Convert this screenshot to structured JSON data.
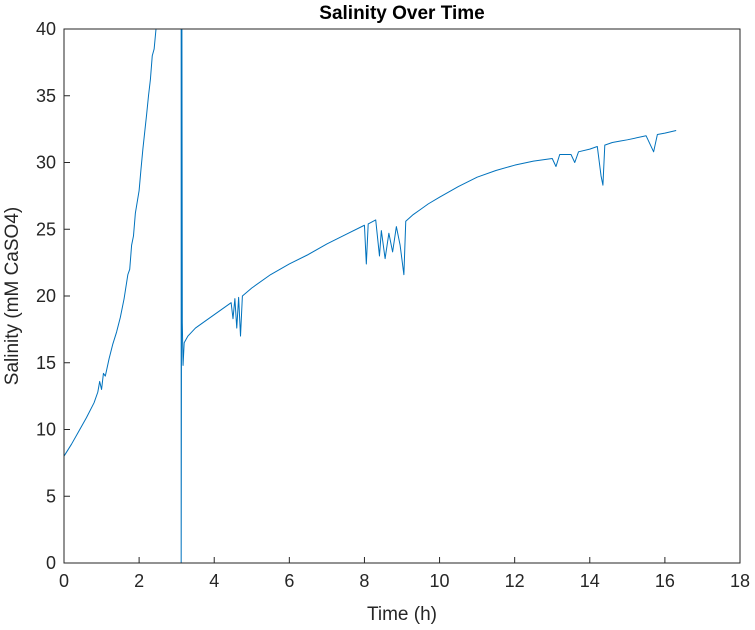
{
  "chart_data": {
    "type": "line",
    "title": "Salinity Over Time",
    "xlabel": "Time (h)",
    "ylabel": "Salinity (mM CaSO4)",
    "xlim": [
      0,
      18
    ],
    "ylim": [
      0,
      40
    ],
    "xticks": [
      0,
      2,
      4,
      6,
      8,
      10,
      12,
      14,
      16,
      18
    ],
    "yticks": [
      0,
      5,
      10,
      15,
      20,
      25,
      30,
      35,
      40
    ],
    "grid": false,
    "line_color": "#0072BD",
    "series": [
      {
        "name": "",
        "segments": [
          [
            [
              0,
              8.0
            ],
            [
              0.2,
              8.9
            ],
            [
              0.4,
              9.9
            ],
            [
              0.6,
              10.9
            ],
            [
              0.8,
              12.0
            ],
            [
              0.9,
              12.8
            ],
            [
              0.95,
              13.6
            ],
            [
              1.0,
              13.0
            ],
            [
              1.05,
              14.2
            ],
            [
              1.1,
              14.0
            ],
            [
              1.2,
              15.3
            ],
            [
              1.3,
              16.4
            ],
            [
              1.4,
              17.3
            ],
            [
              1.5,
              18.4
            ],
            [
              1.6,
              19.8
            ],
            [
              1.7,
              21.6
            ],
            [
              1.75,
              22.0
            ],
            [
              1.8,
              23.8
            ],
            [
              1.85,
              24.5
            ],
            [
              1.9,
              26.2
            ],
            [
              2.0,
              27.9
            ],
            [
              2.05,
              29.5
            ],
            [
              2.1,
              31.0
            ],
            [
              2.15,
              32.3
            ],
            [
              2.2,
              33.6
            ],
            [
              2.25,
              35.0
            ],
            [
              2.3,
              36.2
            ],
            [
              2.35,
              38.0
            ],
            [
              2.4,
              38.5
            ],
            [
              2.45,
              40.0
            ]
          ],
          [
            [
              3.12,
              40.0
            ],
            [
              3.12,
              0.0
            ],
            [
              3.14,
              40.0
            ],
            [
              3.15,
              18.0
            ],
            [
              3.17,
              14.8
            ],
            [
              3.2,
              16.5
            ],
            [
              3.3,
              17.0
            ],
            [
              3.5,
              17.6
            ],
            [
              3.7,
              18.0
            ],
            [
              4.0,
              18.6
            ],
            [
              4.3,
              19.2
            ],
            [
              4.45,
              19.5
            ],
            [
              4.5,
              18.3
            ],
            [
              4.55,
              19.8
            ],
            [
              4.6,
              17.6
            ],
            [
              4.65,
              19.9
            ],
            [
              4.7,
              17.0
            ],
            [
              4.75,
              20.0
            ],
            [
              5.0,
              20.6
            ],
            [
              5.5,
              21.6
            ],
            [
              6.0,
              22.4
            ],
            [
              6.5,
              23.1
            ],
            [
              7.0,
              23.9
            ],
            [
              7.5,
              24.6
            ],
            [
              8.0,
              25.3
            ],
            [
              8.05,
              22.4
            ],
            [
              8.1,
              25.4
            ],
            [
              8.3,
              25.7
            ],
            [
              8.4,
              23.0
            ],
            [
              8.45,
              24.9
            ],
            [
              8.55,
              22.8
            ],
            [
              8.65,
              24.7
            ],
            [
              8.75,
              23.3
            ],
            [
              8.85,
              25.2
            ],
            [
              8.95,
              23.8
            ],
            [
              9.05,
              21.6
            ],
            [
              9.1,
              25.6
            ],
            [
              9.3,
              26.1
            ],
            [
              9.5,
              26.5
            ],
            [
              9.7,
              26.9
            ],
            [
              10.0,
              27.4
            ],
            [
              10.5,
              28.2
            ],
            [
              11.0,
              28.9
            ],
            [
              11.5,
              29.4
            ],
            [
              12.0,
              29.8
            ],
            [
              12.5,
              30.1
            ],
            [
              13.0,
              30.3
            ],
            [
              13.1,
              29.7
            ],
            [
              13.2,
              30.6
            ],
            [
              13.5,
              30.6
            ],
            [
              13.6,
              30.0
            ],
            [
              13.7,
              30.8
            ],
            [
              14.0,
              31.0
            ],
            [
              14.2,
              31.2
            ],
            [
              14.3,
              29.0
            ],
            [
              14.35,
              28.3
            ],
            [
              14.4,
              31.3
            ],
            [
              14.6,
              31.5
            ],
            [
              14.8,
              31.6
            ],
            [
              15.0,
              31.7
            ],
            [
              15.5,
              32.0
            ],
            [
              15.7,
              30.8
            ],
            [
              15.8,
              32.1
            ],
            [
              16.0,
              32.2
            ],
            [
              16.3,
              32.4
            ]
          ]
        ]
      }
    ]
  }
}
